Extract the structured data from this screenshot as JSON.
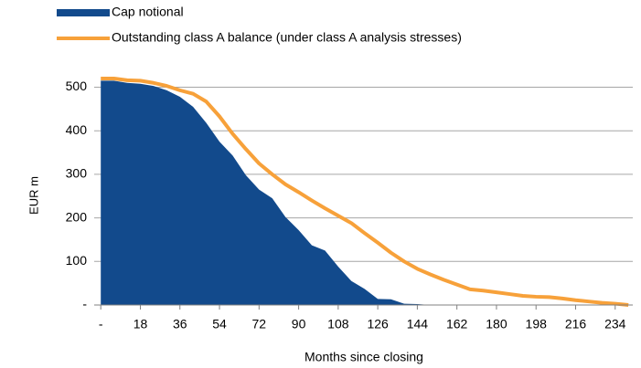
{
  "chart_data": {
    "type": "area-line",
    "xlabel": "Months since closing",
    "ylabel": "EUR m",
    "x": [
      0,
      6,
      12,
      18,
      24,
      30,
      36,
      42,
      48,
      54,
      60,
      66,
      72,
      78,
      84,
      90,
      96,
      102,
      108,
      114,
      120,
      126,
      132,
      138,
      144,
      150,
      156,
      162,
      168,
      174,
      180,
      186,
      192,
      198,
      204,
      210,
      216,
      222,
      228,
      234,
      240
    ],
    "series": [
      {
        "name": "Cap notional",
        "kind": "area",
        "color": "#124a8c",
        "values": [
          515,
          515,
          510,
          508,
          503,
          493,
          478,
          455,
          418,
          375,
          343,
          298,
          265,
          245,
          202,
          172,
          137,
          125,
          88,
          55,
          37,
          14,
          13,
          3,
          2,
          0,
          0,
          0,
          0,
          0,
          0,
          0,
          0,
          0,
          0,
          0,
          0,
          0,
          0,
          0,
          0
        ]
      },
      {
        "name": "Outstanding class A balance (under class A analysis stresses)",
        "kind": "line",
        "color": "#f7a13a",
        "values": [
          520,
          520,
          516,
          515,
          510,
          503,
          493,
          485,
          467,
          433,
          393,
          358,
          325,
          300,
          277,
          259,
          240,
          222,
          205,
          188,
          165,
          143,
          120,
          100,
          83,
          70,
          58,
          47,
          36,
          33,
          29,
          25,
          21,
          19,
          18,
          15,
          11,
          8,
          5,
          3,
          0
        ]
      }
    ],
    "xlim": [
      -3,
      242
    ],
    "xticks": [
      {
        "value": 0,
        "label": "-"
      },
      18,
      36,
      54,
      72,
      90,
      108,
      126,
      144,
      162,
      180,
      198,
      216,
      234
    ],
    "ylim": [
      0,
      520
    ],
    "yticks": [
      {
        "value": 0,
        "label": "-"
      },
      100,
      200,
      300,
      400,
      500
    ],
    "grid": true
  }
}
